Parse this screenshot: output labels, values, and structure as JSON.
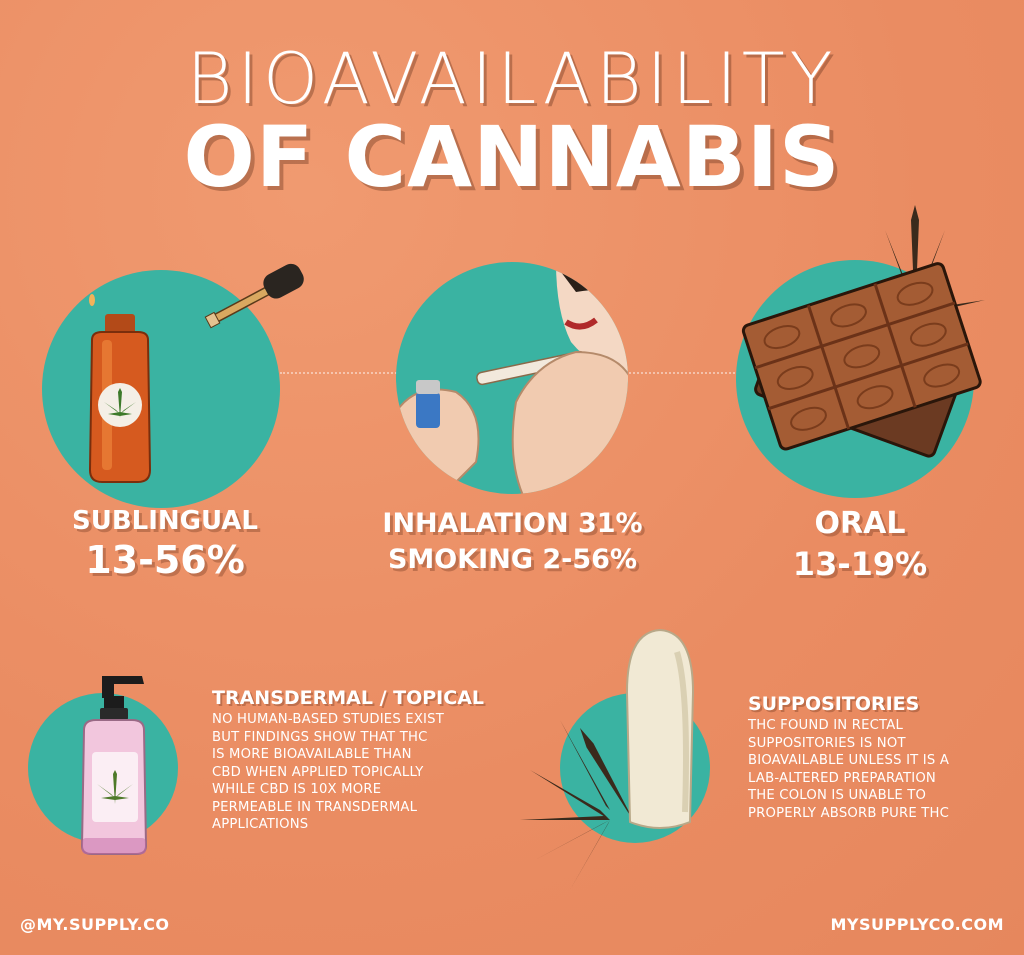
{
  "title": {
    "line1": "BIOAVAILABILITY",
    "line2": "OF CANNABIS"
  },
  "methods": [
    {
      "name": "SUBLINGUAL",
      "value": "13-56%",
      "icon": "dropper-bottle-icon"
    },
    {
      "name": "INHALATION 31%",
      "value": "SMOKING 2-56%",
      "icon": "smoking-joint-icon"
    },
    {
      "name": "ORAL",
      "value": "13-19%",
      "icon": "chocolate-bar-icon"
    }
  ],
  "transdermal": {
    "title": "TRANSDERMAL / TOPICAL",
    "lines": [
      "NO HUMAN-BASED STUDIES EXIST",
      "BUT FINDINGS SHOW THAT THC",
      "IS MORE BIOAVAILABLE THAN",
      "CBD WHEN APPLIED TOPICALLY",
      "WHILE CBD IS 10X MORE",
      "PERMEABLE IN TRANSDERMAL",
      "APPLICATIONS"
    ],
    "icon": "lotion-pump-bottle-icon"
  },
  "suppositories": {
    "title": "SUPPOSITORIES",
    "lines": [
      "THC FOUND IN RECTAL",
      "SUPPOSITORIES IS NOT",
      "BIOAVAILABLE UNLESS IT IS A",
      "LAB-ALTERED PREPARATION",
      "THE COLON IS UNABLE TO",
      "PROPERLY ABSORB PURE THC"
    ],
    "icon": "suppository-icon"
  },
  "footer": {
    "handle": "@MY.SUPPLY.CO",
    "website": "MYSUPPLYCO.COM"
  },
  "colors": {
    "background": "#ec9166",
    "circle": "#3ab3a2",
    "text": "#ffffff",
    "leaf": "#3a2a1c"
  }
}
